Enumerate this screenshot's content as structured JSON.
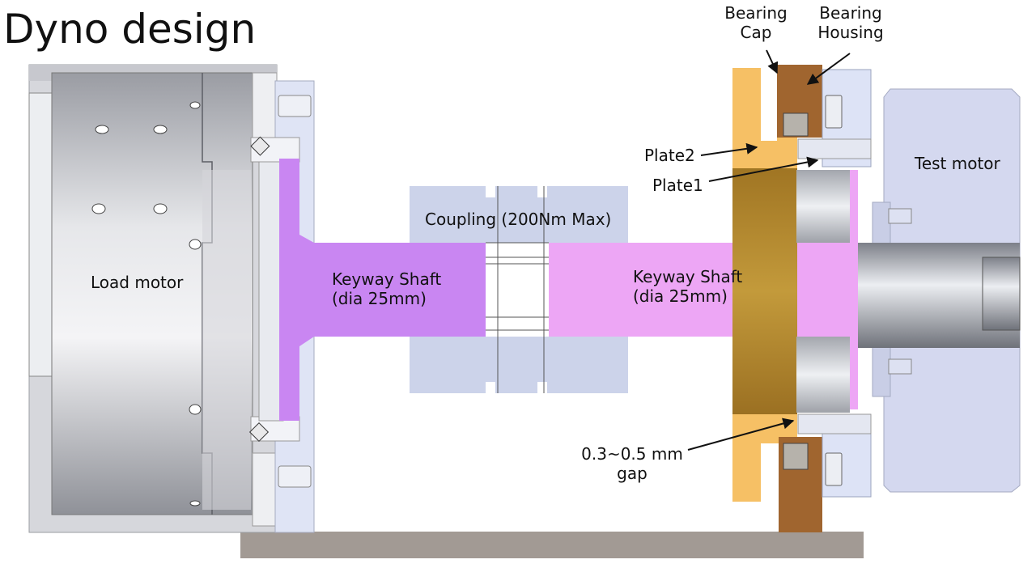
{
  "title": "Dyno design",
  "labels": {
    "bearing_cap": [
      "Bearing",
      "Cap"
    ],
    "bearing_housing": [
      "Bearing",
      "Housing"
    ],
    "load_motor": "Load motor",
    "keyway_left": [
      "Keyway Shaft",
      "(dia 25mm)"
    ],
    "coupling": "Coupling (200Nm Max)",
    "keyway_right": [
      "Keyway Shaft",
      "(dia 25mm)"
    ],
    "plate2": "Plate2",
    "plate1": "Plate1",
    "test_motor": "Test motor",
    "gap": [
      "0.3~0.5 mm",
      "gap"
    ]
  },
  "colors": {
    "shaft_left": "#c986f2",
    "shaft_right": "#eda6f5",
    "coupling": "#ccd3ea",
    "plate2": "#f6c065",
    "bearing_housing": "#a0652f",
    "bearing_cap": "#bfc5d6",
    "motor_body": "#dcdde3",
    "test_motor": "#d4d8ef",
    "base": "#a29a94"
  }
}
